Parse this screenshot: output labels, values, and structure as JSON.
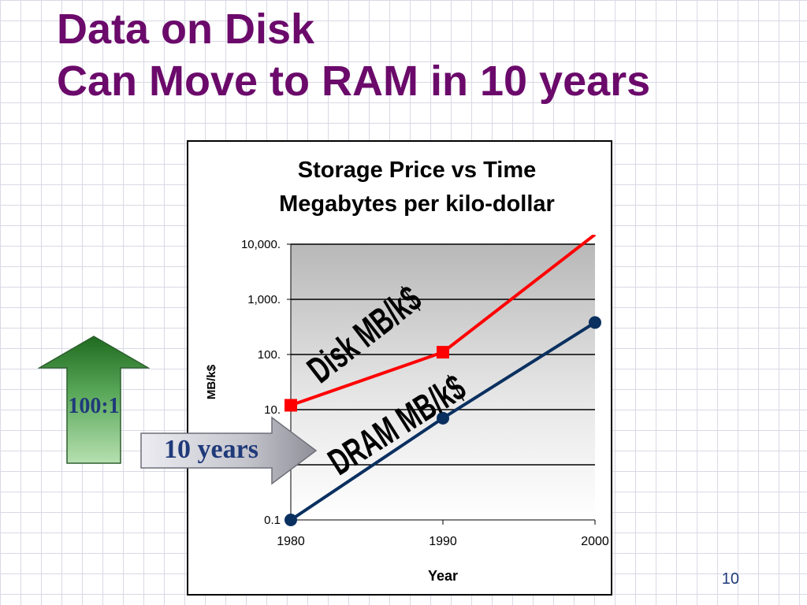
{
  "slide": {
    "title_line1": "Data on Disk",
    "title_line2": "Can Move to RAM in 10 years",
    "page_number": "10",
    "title_color": "#6b0a6b"
  },
  "annotations": {
    "ratio_label": "100:1",
    "years_label": "10 years",
    "up_arrow_color": "#2e7d2e",
    "right_arrow_color": "#a9a9a9"
  },
  "chart_data": {
    "type": "line",
    "title": "Storage Price vs Time",
    "subtitle": "Megabytes per kilo-dollar",
    "xlabel": "Year",
    "ylabel": "MB/k$",
    "y_scale": "log",
    "xlim": [
      1980,
      2000
    ],
    "ylim": [
      0.1,
      10000
    ],
    "x_ticks": [
      {
        "value": 1980,
        "label": "1980"
      },
      {
        "value": 1990,
        "label": "1990"
      },
      {
        "value": 2000,
        "label": "2000"
      }
    ],
    "y_ticks": [
      {
        "value": 0.1,
        "label": "0.1"
      },
      {
        "value": 1,
        "label": ""
      },
      {
        "value": 10,
        "label": "10."
      },
      {
        "value": 100,
        "label": "100."
      },
      {
        "value": 1000,
        "label": "1,000."
      },
      {
        "value": 10000,
        "label": "10,000."
      }
    ],
    "grid": true,
    "series": [
      {
        "name": "Disk  MB/k$",
        "color": "#ff0000",
        "marker": "square",
        "x": [
          1980,
          1990,
          2000
        ],
        "y": [
          12,
          110,
          15000
        ]
      },
      {
        "name": "DRAM  MB/k$",
        "color": "#0a3060",
        "marker": "circle",
        "x": [
          1980,
          1990,
          2000
        ],
        "y": [
          0.1,
          7,
          380
        ]
      }
    ]
  }
}
